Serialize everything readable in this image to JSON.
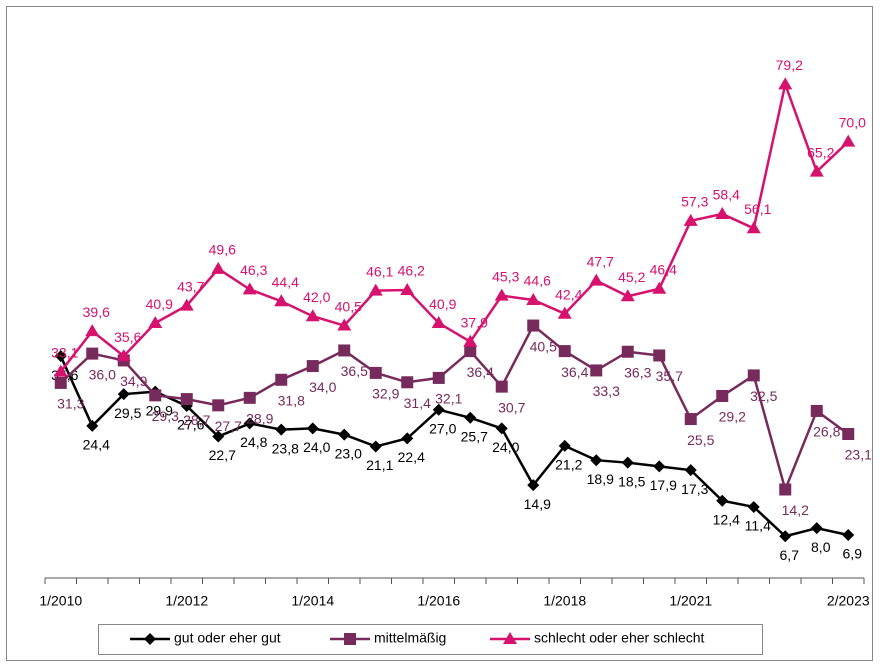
{
  "chart_data": {
    "type": "line",
    "categories": [
      "1/2010",
      null,
      null,
      null,
      "1/2012",
      null,
      null,
      null,
      "1/2014",
      null,
      null,
      null,
      "1/2016",
      null,
      null,
      null,
      "1/2018",
      null,
      null,
      null,
      "1/2021",
      null,
      null,
      null,
      null,
      "2/2023"
    ],
    "ylim": [
      0,
      90
    ],
    "legend": "bottom",
    "series": [
      {
        "name": "gut oder eher gut",
        "color": "#000000",
        "marker": "diamond",
        "values": [
          35.6,
          24.4,
          29.5,
          29.9,
          27.6,
          22.7,
          24.8,
          23.8,
          24.0,
          23.0,
          21.1,
          22.4,
          27.0,
          25.7,
          24.0,
          14.9,
          21.2,
          18.9,
          18.5,
          17.9,
          17.3,
          12.4,
          11.4,
          6.7,
          8.0,
          6.9
        ],
        "value_labels": [
          "35,6",
          "24,4",
          "29,5",
          "29,9",
          "27,6",
          "22,7",
          "24,8",
          "23,8",
          "24,0",
          "23,0",
          "21,1",
          "22,4",
          "27,0",
          "25,7",
          "24,0",
          "14,9",
          "21,2",
          "18,9",
          "18,5",
          "17,9",
          "17,3",
          "12,4",
          "11,4",
          "6,7",
          "8,0",
          "6,9"
        ]
      },
      {
        "name": "mittelmäßig",
        "color": "#772a5c",
        "marker": "square",
        "values": [
          31.3,
          36.0,
          34.9,
          29.3,
          28.7,
          27.7,
          28.9,
          31.8,
          34.0,
          36.5,
          32.9,
          31.4,
          32.1,
          36.4,
          30.7,
          40.5,
          36.4,
          33.3,
          36.3,
          35.7,
          25.5,
          29.2,
          32.5,
          14.2,
          26.8,
          23.1
        ],
        "value_labels": [
          "31,3",
          "36,0",
          "34,9",
          "29,3",
          "28,7",
          "27,7",
          "28,9",
          "31,8",
          "34,0",
          "36,5",
          "32,9",
          "31,4",
          "32,1",
          "36,4",
          "30,7",
          "40,5",
          "36,4",
          "33,3",
          "36,3",
          "35,7",
          "25,5",
          "29,2",
          "32,5",
          "14,2",
          "26,8",
          "23,1"
        ]
      },
      {
        "name": "schlecht oder eher schlecht",
        "color": "#d6116e",
        "marker": "triangle",
        "values": [
          33.1,
          39.6,
          35.6,
          40.9,
          43.7,
          49.6,
          46.3,
          44.4,
          42.0,
          40.5,
          46.1,
          46.2,
          40.9,
          37.9,
          45.3,
          44.6,
          42.4,
          47.7,
          45.2,
          46.4,
          57.3,
          58.4,
          56.1,
          79.2,
          65.2,
          70.0
        ],
        "value_labels": [
          "33,1",
          "39,6",
          "35,6",
          "40,9",
          "43,7",
          "49,6",
          "46,3",
          "44,4",
          "42,0",
          "40,5",
          "46,1",
          "46,2",
          "40,9",
          "37,9",
          "45,3",
          "44,6",
          "42,4",
          "47,7",
          "45,2",
          "46,4",
          "57,3",
          "58,4",
          "56,1",
          "79,2",
          "65,2",
          "70,0"
        ]
      }
    ]
  }
}
